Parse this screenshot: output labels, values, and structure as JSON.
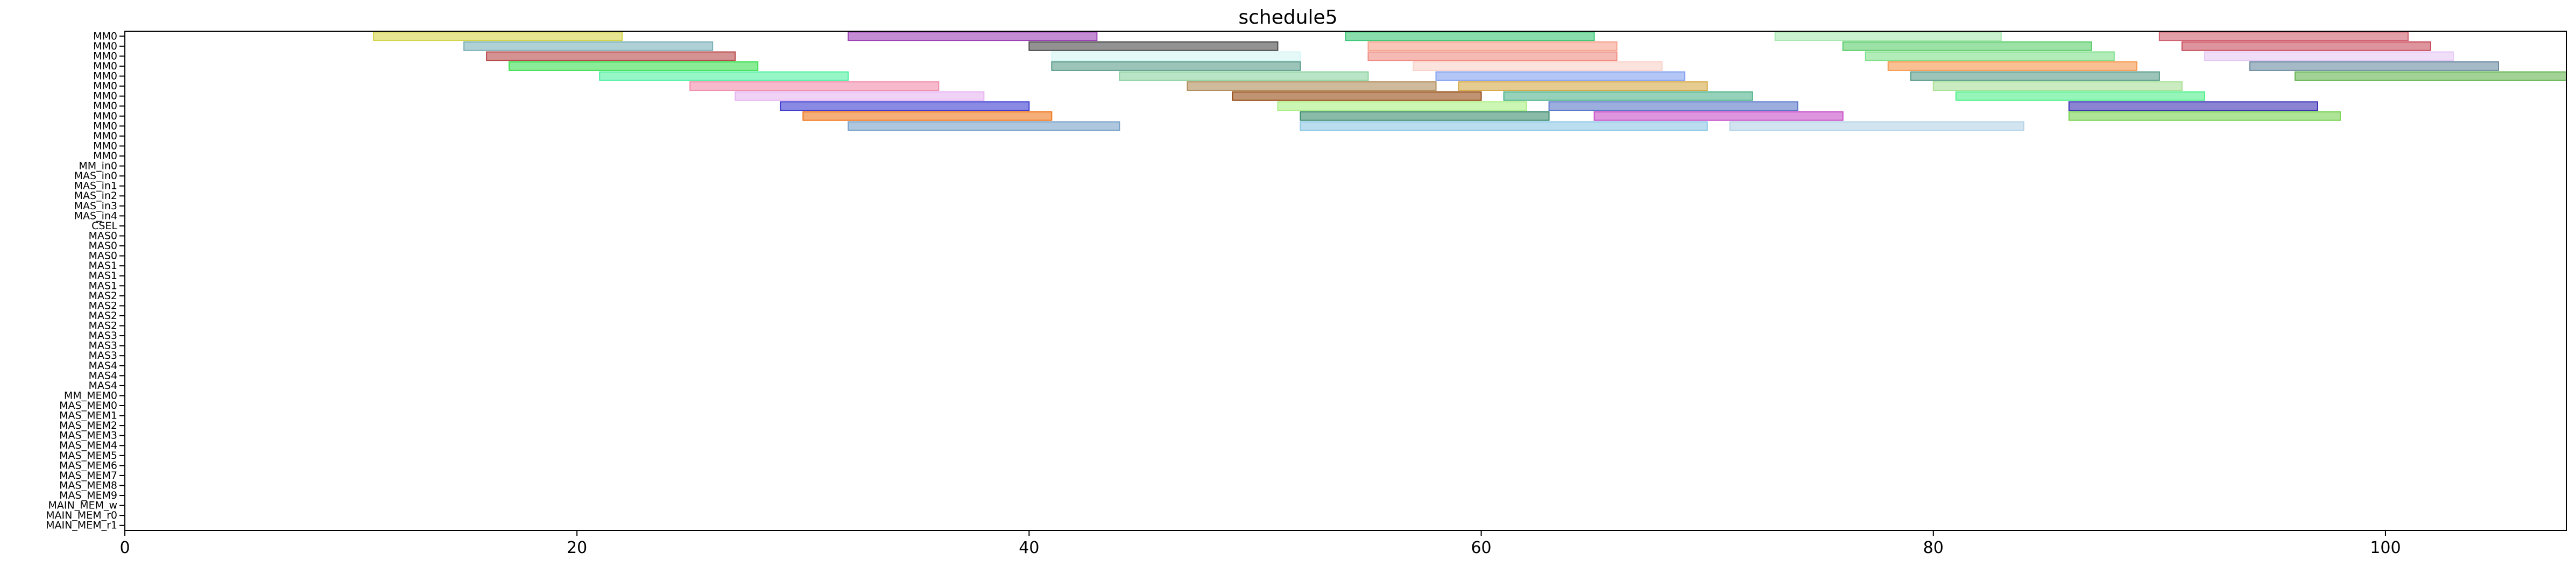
{
  "chart_data": {
    "type": "gantt",
    "title": "schedule5",
    "xlabel": "",
    "ylabel": "",
    "xlim": [
      0,
      108
    ],
    "xticks": [
      0,
      20,
      40,
      60,
      80,
      100
    ],
    "grid": false,
    "legend": "none",
    "rows": [
      "MM0",
      "MM0",
      "MM0",
      "MM0",
      "MM0",
      "MM0",
      "MM0",
      "MM0",
      "MM0",
      "MM0",
      "MM0",
      "MM0",
      "MM0",
      "MM_in0",
      "MAS_in0",
      "MAS_in1",
      "MAS_in2",
      "MAS_in3",
      "MAS_in4",
      "CSEL",
      "MAS0",
      "MAS0",
      "MAS0",
      "MAS1",
      "MAS1",
      "MAS1",
      "MAS2",
      "MAS2",
      "MAS2",
      "MAS2",
      "MAS3",
      "MAS3",
      "MAS3",
      "MAS4",
      "MAS4",
      "MAS4",
      "MM_MEM0",
      "MAS_MEM0",
      "MAS_MEM1",
      "MAS_MEM2",
      "MAS_MEM3",
      "MAS_MEM4",
      "MAS_MEM5",
      "MAS_MEM6",
      "MAS_MEM7",
      "MAS_MEM8",
      "MAS_MEM9",
      "MAIN_MEM_w",
      "MAIN_MEM_r0",
      "MAIN_MEM_r1"
    ],
    "tasks": [
      {
        "row": 0,
        "start": 11,
        "end": 22,
        "color": "#d4d44a"
      },
      {
        "row": 0,
        "start": 32,
        "end": 43,
        "color": "#9b3fb5"
      },
      {
        "row": 0,
        "start": 54,
        "end": 65,
        "color": "#3cc878"
      },
      {
        "row": 0,
        "start": 73,
        "end": 83,
        "color": "#a6e8b0"
      },
      {
        "row": 0,
        "start": 90,
        "end": 101,
        "color": "#d06070"
      },
      {
        "row": 1,
        "start": 15,
        "end": 26,
        "color": "#7ab0b8"
      },
      {
        "row": 1,
        "start": 40,
        "end": 51,
        "color": "#4a4a4a"
      },
      {
        "row": 1,
        "start": 55,
        "end": 66,
        "color": "#f5a08a"
      },
      {
        "row": 1,
        "start": 76,
        "end": 87,
        "color": "#5acd6a"
      },
      {
        "row": 1,
        "start": 91,
        "end": 102,
        "color": "#c84c5c"
      },
      {
        "row": 2,
        "start": 16,
        "end": 27,
        "color": "#b84a4a"
      },
      {
        "row": 2,
        "start": 41,
        "end": 52,
        "color": "#d6f5f5"
      },
      {
        "row": 2,
        "start": 55,
        "end": 66,
        "color": "#f08c82"
      },
      {
        "row": 2,
        "start": 77,
        "end": 88,
        "color": "#7ee08a"
      },
      {
        "row": 2,
        "start": 92,
        "end": 103,
        "color": "#e6c8f5"
      },
      {
        "row": 3,
        "start": 17,
        "end": 28,
        "color": "#3ce050"
      },
      {
        "row": 3,
        "start": 41,
        "end": 52,
        "color": "#5a9c8a"
      },
      {
        "row": 3,
        "start": 57,
        "end": 68,
        "color": "#fad2c8"
      },
      {
        "row": 3,
        "start": 78,
        "end": 89,
        "color": "#f5964b"
      },
      {
        "row": 3,
        "start": 94,
        "end": 105,
        "color": "#6a8aa0"
      },
      {
        "row": 4,
        "start": 21,
        "end": 32,
        "color": "#50f0a0"
      },
      {
        "row": 4,
        "start": 44,
        "end": 55,
        "color": "#8cd2a0"
      },
      {
        "row": 4,
        "start": 58,
        "end": 69,
        "color": "#82a0f0"
      },
      {
        "row": 4,
        "start": 79,
        "end": 90,
        "color": "#5a9c8a"
      },
      {
        "row": 4,
        "start": 96,
        "end": 108,
        "color": "#64b450"
      },
      {
        "row": 5,
        "start": 25,
        "end": 36,
        "color": "#f08caa"
      },
      {
        "row": 5,
        "start": 47,
        "end": 58,
        "color": "#b08c5a"
      },
      {
        "row": 5,
        "start": 59,
        "end": 70,
        "color": "#d6aa46"
      },
      {
        "row": 5,
        "start": 80,
        "end": 91,
        "color": "#a8e096"
      },
      {
        "row": 6,
        "start": 27,
        "end": 38,
        "color": "#e6b4f0"
      },
      {
        "row": 6,
        "start": 49,
        "end": 60,
        "color": "#964b14"
      },
      {
        "row": 6,
        "start": 61,
        "end": 72,
        "color": "#50b48c"
      },
      {
        "row": 6,
        "start": 81,
        "end": 92,
        "color": "#50f08c"
      },
      {
        "row": 7,
        "start": 29,
        "end": 40,
        "color": "#3c3cd2"
      },
      {
        "row": 7,
        "start": 51,
        "end": 62,
        "color": "#aaf082"
      },
      {
        "row": 7,
        "start": 63,
        "end": 74,
        "color": "#5a78c8"
      },
      {
        "row": 7,
        "start": 86,
        "end": 97,
        "color": "#3c32b4"
      },
      {
        "row": 8,
        "start": 30,
        "end": 41,
        "color": "#f0781e"
      },
      {
        "row": 8,
        "start": 52,
        "end": 63,
        "color": "#3c8c6e"
      },
      {
        "row": 8,
        "start": 65,
        "end": 76,
        "color": "#c850c8"
      },
      {
        "row": 8,
        "start": 86,
        "end": 98,
        "color": "#78d250"
      },
      {
        "row": 9,
        "start": 32,
        "end": 44,
        "color": "#78a0c8"
      },
      {
        "row": 9,
        "start": 52,
        "end": 70,
        "color": "#8cc8e6"
      },
      {
        "row": 9,
        "start": 71,
        "end": 84,
        "color": "#b4d2e6"
      }
    ]
  }
}
